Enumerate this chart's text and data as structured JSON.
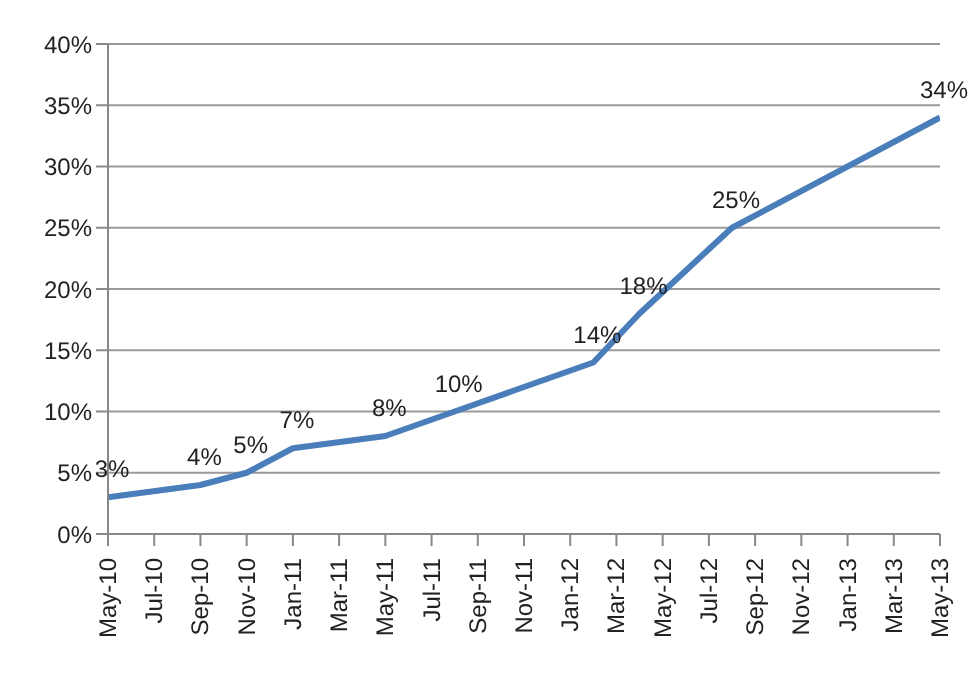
{
  "chart_data": {
    "type": "line",
    "x": [
      "2010-05",
      "2010-09",
      "2010-11",
      "2011-01",
      "2011-05",
      "2011-08",
      "2012-02",
      "2012-04",
      "2012-08",
      "2013-05"
    ],
    "series": [
      {
        "color": "#4a7ebb",
        "values": [
          3,
          4,
          5,
          7,
          8,
          10,
          14,
          18,
          25,
          34
        ],
        "value_labels": [
          "3%",
          "4%",
          "5%",
          "7%",
          "8%",
          "10%",
          "14%",
          "18%",
          "25%",
          "34%"
        ]
      }
    ],
    "xlim": [
      "2010-05",
      "2013-05"
    ],
    "xticks": [
      {
        "value": "2010-05",
        "label": "May-10"
      },
      {
        "value": "2010-07",
        "label": "Jul-10"
      },
      {
        "value": "2010-09",
        "label": "Sep-10"
      },
      {
        "value": "2010-11",
        "label": "Nov-10"
      },
      {
        "value": "2011-01",
        "label": "Jan-11"
      },
      {
        "value": "2011-03",
        "label": "Mar-11"
      },
      {
        "value": "2011-05",
        "label": "May-11"
      },
      {
        "value": "2011-07",
        "label": "Jul-11"
      },
      {
        "value": "2011-09",
        "label": "Sep-11"
      },
      {
        "value": "2011-11",
        "label": "Nov-11"
      },
      {
        "value": "2012-01",
        "label": "Jan-12"
      },
      {
        "value": "2012-03",
        "label": "Mar-12"
      },
      {
        "value": "2012-05",
        "label": "May-12"
      },
      {
        "value": "2012-07",
        "label": "Jul-12"
      },
      {
        "value": "2012-09",
        "label": "Sep-12"
      },
      {
        "value": "2012-11",
        "label": "Nov-12"
      },
      {
        "value": "2013-01",
        "label": "Jan-13"
      },
      {
        "value": "2013-03",
        "label": "Mar-13"
      },
      {
        "value": "2013-05",
        "label": "May-13"
      }
    ],
    "ylim": [
      0,
      40
    ],
    "yticks": [
      {
        "value": 0,
        "label": "0%"
      },
      {
        "value": 5,
        "label": "5%"
      },
      {
        "value": 10,
        "label": "10%"
      },
      {
        "value": 15,
        "label": "15%"
      },
      {
        "value": 20,
        "label": "20%"
      },
      {
        "value": 25,
        "label": "25%"
      },
      {
        "value": 30,
        "label": "30%"
      },
      {
        "value": 35,
        "label": "35%"
      },
      {
        "value": 40,
        "label": "40%"
      }
    ],
    "grid": "y",
    "marker": "none",
    "line_style": "solid"
  }
}
